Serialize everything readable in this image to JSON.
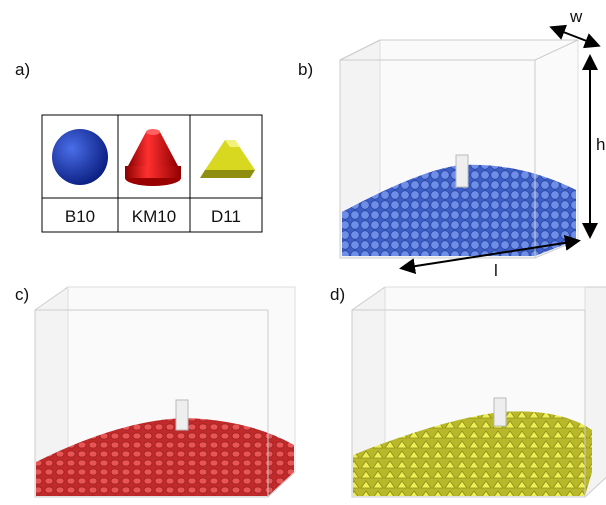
{
  "panels": {
    "a": "a)",
    "b": "b)",
    "c": "c)",
    "d": "d)"
  },
  "particles": [
    "B10",
    "KM10",
    "D11"
  ],
  "dimensions": {
    "w": "w",
    "h": "h",
    "l": "l"
  }
}
